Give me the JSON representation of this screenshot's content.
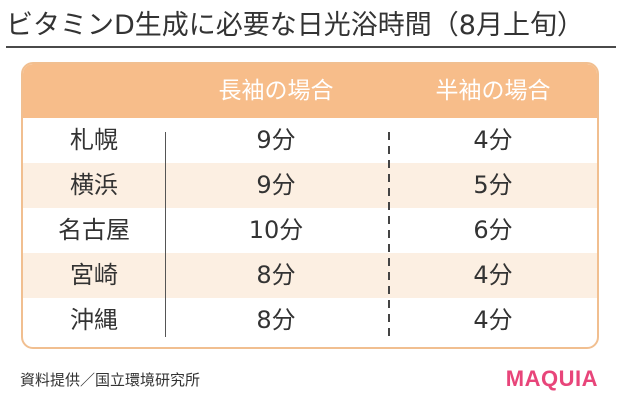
{
  "title": "ビタミンD生成に必要な日光浴時間（8月上旬）",
  "table": {
    "headers": {
      "place": "",
      "long_sleeve": "長袖の場合",
      "short_sleeve": "半袖の場合"
    },
    "rows": [
      {
        "place": "札幌",
        "long_sleeve": "9分",
        "short_sleeve": "4分"
      },
      {
        "place": "横浜",
        "long_sleeve": "9分",
        "short_sleeve": "5分"
      },
      {
        "place": "名古屋",
        "long_sleeve": "10分",
        "short_sleeve": "6分"
      },
      {
        "place": "宮崎",
        "long_sleeve": "8分",
        "short_sleeve": "4分"
      },
      {
        "place": "沖縄",
        "long_sleeve": "8分",
        "short_sleeve": "4分"
      }
    ]
  },
  "source": "資料提供／国立環境研究所",
  "brand": "MAQUIA",
  "colors": {
    "header_bg": "#f7bd8a",
    "row_shade": "#fcefe2",
    "brand_pink": "#e8457a"
  }
}
